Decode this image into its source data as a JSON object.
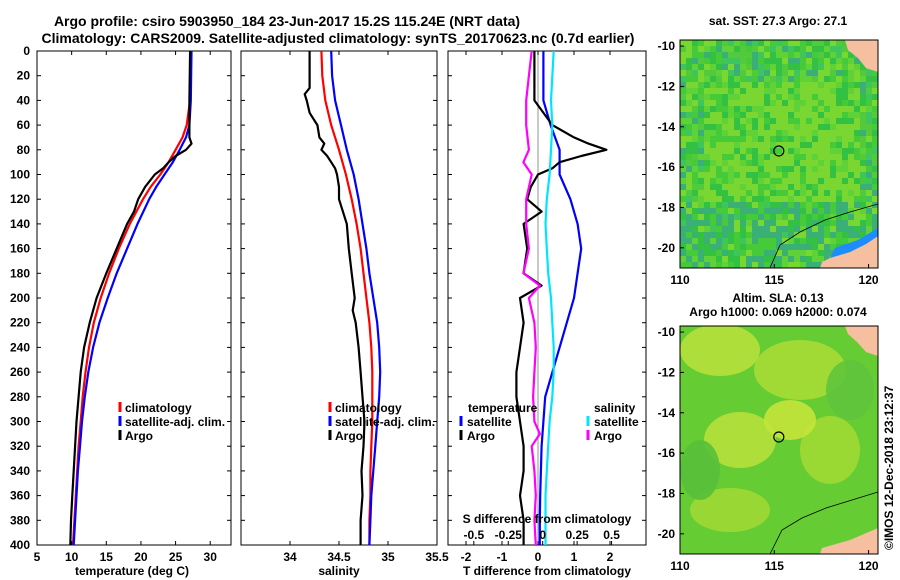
{
  "title_line1": "Argo profile: csiro 5903950_184 23-Jun-2017 15.2S 115.24E (NRT data)",
  "title_line2": "Climatology: CARS2009. Satellite-adjusted climatology: synTS_20170623.nc (0.7d earlier)",
  "colors": {
    "climatology": "#ff0000",
    "satellite": "#0000ff",
    "argo": "#000000",
    "s_satellite": "#00e5ff",
    "s_argo": "#ff00ff"
  },
  "chart_data": [
    {
      "type": "line",
      "xlabel": "temperature (deg C)",
      "xlim": [
        5,
        33
      ],
      "xticks": [
        "5",
        "10",
        "15",
        "20",
        "25",
        "30"
      ],
      "ylim": [
        0,
        400
      ],
      "yticks": [
        "0",
        "20",
        "40",
        "60",
        "80",
        "100",
        "120",
        "140",
        "160",
        "180",
        "200",
        "220",
        "240",
        "260",
        "280",
        "300",
        "320",
        "340",
        "360",
        "380",
        "400"
      ],
      "legend": [
        "climatology",
        "satellite-adj. clim.",
        "Argo"
      ],
      "series": [
        {
          "name": "climatology",
          "depth": [
            0,
            40,
            60,
            70,
            80,
            90,
            100,
            110,
            120,
            140,
            160,
            180,
            200,
            220,
            240,
            260,
            280,
            300,
            320,
            340,
            360,
            380,
            400
          ],
          "values": [
            27.2,
            27.1,
            26.6,
            26.0,
            25.0,
            24.0,
            22.8,
            21.4,
            20.3,
            18.4,
            16.8,
            15.4,
            14.2,
            13.2,
            12.5,
            12.0,
            11.6,
            11.3,
            11.0,
            10.8,
            10.6,
            10.4,
            10.2
          ]
        },
        {
          "name": "satellite-adj. clim.",
          "depth": [
            0,
            40,
            60,
            70,
            80,
            90,
            100,
            110,
            120,
            140,
            160,
            180,
            200,
            220,
            240,
            260,
            280,
            300,
            320,
            340,
            360,
            380,
            400
          ],
          "values": [
            27.3,
            27.2,
            27.0,
            26.5,
            25.6,
            24.6,
            23.4,
            22.2,
            21.2,
            19.5,
            18.0,
            16.5,
            15.2,
            14.0,
            13.1,
            12.4,
            11.9,
            11.5,
            11.2,
            10.9,
            10.7,
            10.5,
            10.3
          ]
        },
        {
          "name": "Argo",
          "depth": [
            0,
            40,
            60,
            70,
            75,
            80,
            85,
            90,
            95,
            100,
            110,
            120,
            130,
            140,
            160,
            180,
            200,
            220,
            240,
            260,
            280,
            300,
            320,
            340,
            360,
            380,
            400
          ],
          "values": [
            27.1,
            27.0,
            27.0,
            27.0,
            27.3,
            26.5,
            25.0,
            24.0,
            23.2,
            22.0,
            20.6,
            19.6,
            19.0,
            18.0,
            16.5,
            15.0,
            13.6,
            12.6,
            11.8,
            11.3,
            11.0,
            10.7,
            10.5,
            10.3,
            10.1,
            9.9,
            9.8
          ]
        }
      ]
    },
    {
      "type": "line",
      "xlabel": "salinity",
      "xlim": [
        33.5,
        35.5
      ],
      "xticks": [
        "34",
        "34.5",
        "35",
        "35.5"
      ],
      "ylim": [
        0,
        400
      ],
      "legend": [
        "climatology",
        "satellite-adj. clim.",
        "Argo"
      ],
      "series": [
        {
          "name": "climatology",
          "depth": [
            0,
            20,
            40,
            60,
            80,
            100,
            120,
            140,
            160,
            180,
            200,
            220,
            240,
            260,
            280,
            300,
            320,
            340,
            360,
            380,
            400
          ],
          "values": [
            34.32,
            34.33,
            34.36,
            34.42,
            34.5,
            34.57,
            34.63,
            34.68,
            34.72,
            34.75,
            34.78,
            34.81,
            34.83,
            34.84,
            34.84,
            34.84,
            34.83,
            34.82,
            34.82,
            34.81,
            34.81
          ]
        },
        {
          "name": "satellite-adj. clim.",
          "depth": [
            0,
            20,
            40,
            60,
            80,
            100,
            120,
            140,
            160,
            180,
            200,
            220,
            240,
            260,
            280,
            300,
            320,
            340,
            360,
            380,
            400
          ],
          "values": [
            34.42,
            34.43,
            34.46,
            34.52,
            34.58,
            34.65,
            34.7,
            34.74,
            34.78,
            34.81,
            34.85,
            34.89,
            34.91,
            34.92,
            34.91,
            34.89,
            34.87,
            34.85,
            34.83,
            34.82,
            34.81
          ]
        },
        {
          "name": "Argo",
          "depth": [
            0,
            30,
            35,
            40,
            50,
            60,
            70,
            75,
            80,
            85,
            90,
            95,
            100,
            110,
            120,
            140,
            160,
            180,
            200,
            210,
            220,
            240,
            260,
            280,
            300,
            320,
            340,
            360,
            380,
            400
          ],
          "values": [
            34.2,
            34.2,
            34.15,
            34.17,
            34.2,
            34.28,
            34.3,
            34.35,
            34.32,
            34.38,
            34.42,
            34.46,
            34.48,
            34.5,
            34.5,
            34.58,
            34.6,
            34.63,
            34.66,
            34.64,
            34.67,
            34.7,
            34.72,
            34.74,
            34.76,
            34.75,
            34.73,
            34.74,
            34.72,
            34.72
          ]
        }
      ]
    },
    {
      "type": "line",
      "xlabel": "T difference from climatology",
      "top_xlabel": "S difference from climatology",
      "xlim": [
        -2.5,
        3.0
      ],
      "xticks": [
        "-2",
        "-1",
        "0",
        "1",
        "2"
      ],
      "top_xlim": [
        -0.6875,
        0.75
      ],
      "top_xticks": [
        "-0.5",
        "-0.25",
        "0",
        "0.25",
        "0.5"
      ],
      "ylim": [
        0,
        400
      ],
      "legend_left": {
        "header": "temperature",
        "items": [
          "satellite",
          "Argo"
        ]
      },
      "legend_right": {
        "header": "salinity",
        "items": [
          "satellite",
          "Argo"
        ]
      },
      "series": [
        {
          "name": "temperature satellite",
          "axis": "T",
          "depth": [
            0,
            40,
            60,
            80,
            100,
            120,
            140,
            160,
            180,
            200,
            220,
            240,
            260,
            280,
            300,
            320,
            340,
            360,
            380,
            400
          ],
          "values": [
            0.15,
            0.15,
            0.35,
            0.6,
            0.6,
            0.9,
            1.1,
            1.2,
            1.1,
            1.0,
            0.8,
            0.6,
            0.4,
            0.2,
            0.15,
            0.1,
            0.08,
            0.06,
            0.05,
            0.05
          ]
        },
        {
          "name": "temperature Argo",
          "axis": "T",
          "depth": [
            0,
            40,
            60,
            70,
            75,
            80,
            85,
            90,
            95,
            100,
            110,
            120,
            130,
            140,
            160,
            180,
            190,
            200,
            220,
            240,
            260,
            280,
            300,
            320,
            340,
            360,
            380,
            400
          ],
          "values": [
            -0.1,
            -0.1,
            0.4,
            1.0,
            1.4,
            1.9,
            1.2,
            0.6,
            0.4,
            0.0,
            -0.2,
            -0.3,
            0.1,
            -0.4,
            -0.3,
            -0.4,
            0.1,
            -0.5,
            -0.4,
            -0.5,
            -0.6,
            -0.6,
            -0.5,
            -0.4,
            -0.4,
            -0.5,
            -0.4,
            -0.4
          ]
        },
        {
          "name": "salinity satellite",
          "axis": "S",
          "depth": [
            0,
            40,
            60,
            80,
            100,
            120,
            140,
            160,
            180,
            200,
            220,
            240,
            260,
            280,
            300,
            320,
            340,
            360,
            380,
            400
          ],
          "values": [
            0.08,
            0.06,
            0.07,
            0.06,
            0.05,
            0.03,
            0.02,
            0.03,
            0.04,
            0.06,
            0.07,
            0.08,
            0.08,
            0.07,
            0.05,
            0.04,
            0.03,
            0.02,
            0.02,
            0.02
          ]
        },
        {
          "name": "salinity Argo",
          "axis": "S",
          "depth": [
            0,
            20,
            40,
            60,
            80,
            90,
            100,
            120,
            140,
            160,
            180,
            190,
            200,
            220,
            240,
            260,
            280,
            300,
            310,
            320,
            340,
            360,
            380,
            400
          ],
          "values": [
            -0.08,
            -0.1,
            -0.12,
            -0.12,
            -0.1,
            -0.14,
            -0.08,
            -0.12,
            -0.12,
            -0.1,
            -0.14,
            -0.02,
            -0.1,
            -0.06,
            -0.05,
            -0.06,
            -0.07,
            -0.06,
            -0.02,
            -0.08,
            -0.06,
            -0.05,
            -0.06,
            -0.05
          ]
        }
      ]
    },
    {
      "type": "heatmap",
      "title": "sat. SST: 27.3 Argo: 27.1",
      "xticks": [
        "110",
        "115",
        "120"
      ],
      "yticks": [
        "-10",
        "-12",
        "-14",
        "-16",
        "-18",
        "-20"
      ],
      "xlim": [
        110,
        120.5
      ],
      "ylim": [
        -21,
        -9.7
      ],
      "marker": {
        "lon": 115.24,
        "lat": -15.2
      }
    },
    {
      "type": "heatmap",
      "title": "Altim. SLA: 0.13",
      "subtitle": "Argo h1000: 0.069 h2000: 0.074",
      "xticks": [
        "110",
        "115",
        "120"
      ],
      "yticks": [
        "-10",
        "-12",
        "-14",
        "-16",
        "-18",
        "-20"
      ],
      "xlim": [
        110,
        120.5
      ],
      "ylim": [
        -21,
        -9.7
      ],
      "marker": {
        "lon": 115.24,
        "lat": -15.2
      }
    }
  ],
  "stamp": "©IMOS 12-Dec-2018 23:12:37"
}
